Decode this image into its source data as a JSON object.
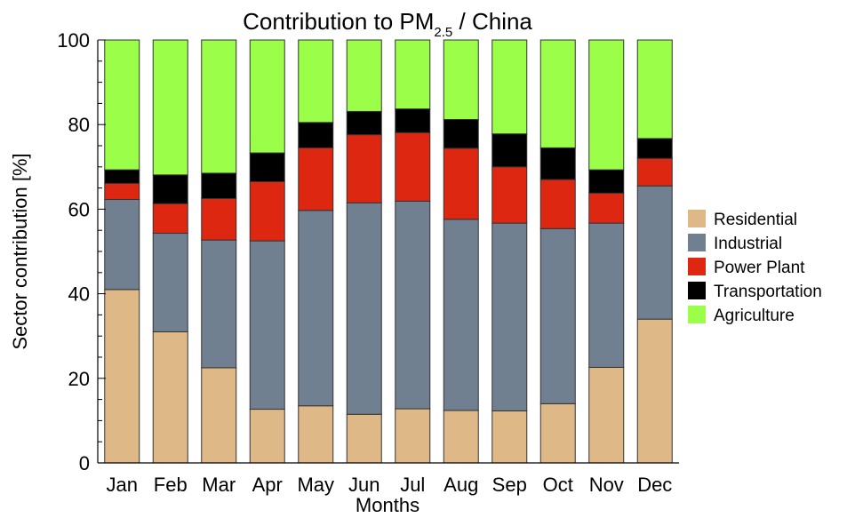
{
  "chart_data": {
    "type": "bar",
    "stacked": true,
    "title_main": "Contribution to PM",
    "title_subscript": "2.5",
    "title_suffix": " / China",
    "xlabel": "Months",
    "ylabel": "Sector contribution [%]",
    "ylim": [
      0,
      100
    ],
    "yticks": [
      "0",
      "20",
      "40",
      "60",
      "80",
      "100"
    ],
    "categories": [
      "Jan",
      "Feb",
      "Mar",
      "Apr",
      "May",
      "Jun",
      "Jul",
      "Aug",
      "Sep",
      "Oct",
      "Nov",
      "Dec"
    ],
    "series": [
      {
        "name": "Residential",
        "color": "#deb887",
        "values": [
          41.0,
          31.0,
          22.5,
          12.7,
          13.5,
          11.5,
          12.8,
          12.4,
          12.3,
          14.0,
          22.6,
          34.0
        ]
      },
      {
        "name": "Industrial",
        "color": "#708090",
        "values": [
          21.3,
          23.3,
          30.2,
          39.8,
          46.2,
          50.0,
          49.1,
          45.2,
          44.4,
          41.4,
          34.1,
          31.5
        ]
      },
      {
        "name": "Power Plant",
        "color": "#dd2711",
        "values": [
          3.8,
          7.0,
          9.8,
          14.0,
          14.8,
          16.1,
          16.2,
          16.8,
          13.3,
          11.6,
          7.1,
          6.5
        ]
      },
      {
        "name": "Transportation",
        "color": "#000000",
        "values": [
          3.2,
          6.8,
          6.0,
          6.8,
          6.0,
          5.5,
          5.6,
          6.8,
          7.8,
          7.5,
          5.5,
          4.7
        ]
      },
      {
        "name": "Agriculture",
        "color": "#9bff4a",
        "values": [
          30.7,
          31.9,
          31.5,
          26.7,
          19.5,
          16.9,
          16.3,
          18.8,
          22.2,
          25.5,
          30.7,
          23.3
        ]
      }
    ],
    "grid": false,
    "legend_position": "right"
  }
}
